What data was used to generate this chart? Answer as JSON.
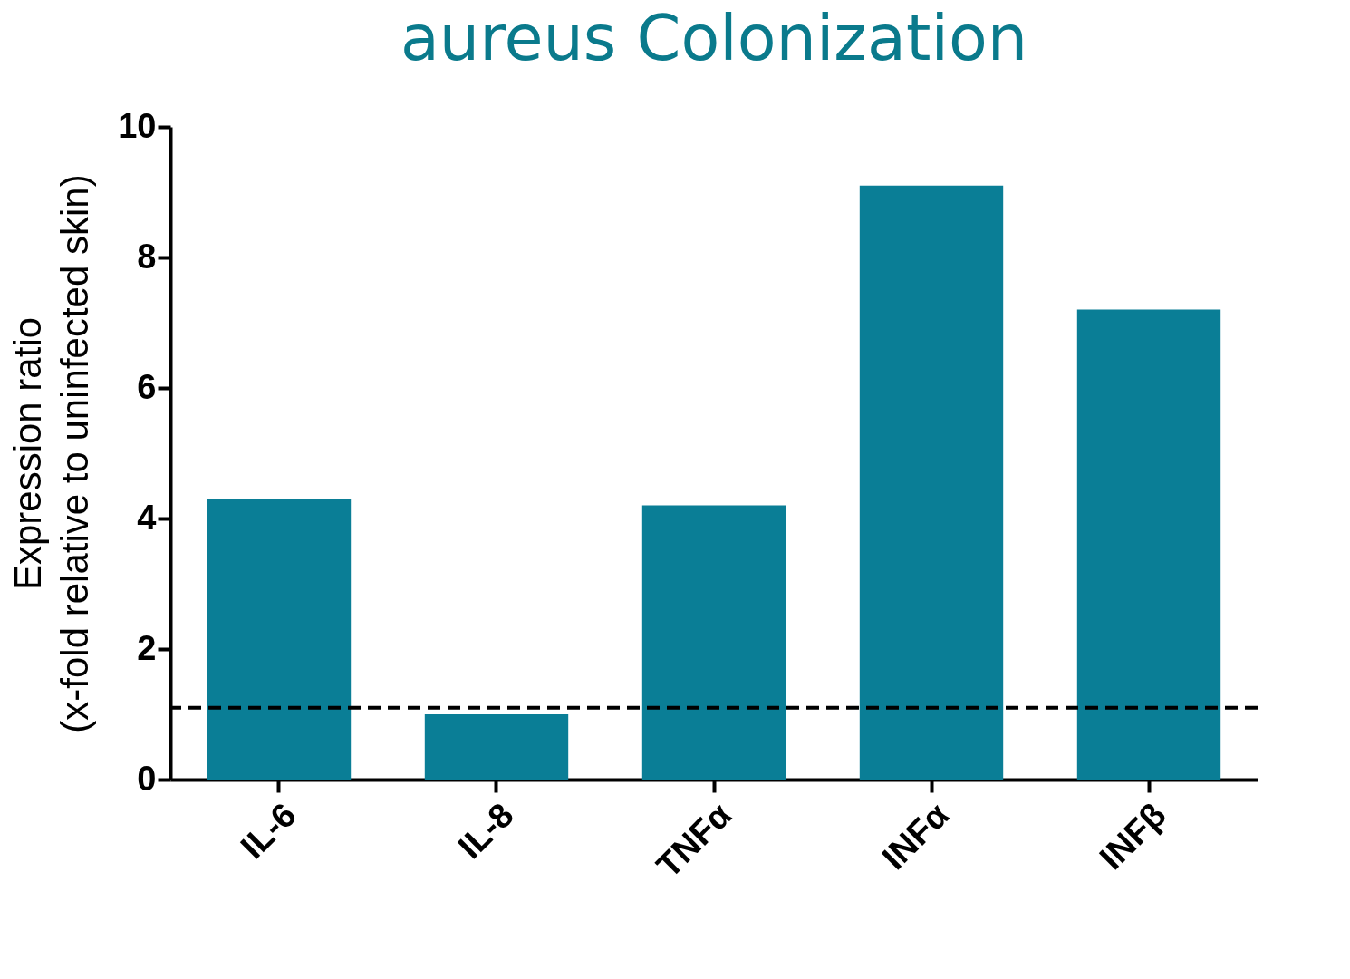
{
  "chart_data": {
    "type": "bar",
    "title": "aureus Colonization",
    "ylabel": "Expression ratio\n(x-fold relative to uninfected skin)",
    "categories": [
      "IL-6",
      "IL-8",
      "TNFα",
      "INFα",
      "INFβ"
    ],
    "values": [
      4.3,
      1.0,
      4.2,
      9.1,
      7.2
    ],
    "color": "#0a7e96",
    "ylim": [
      0,
      10
    ],
    "yticks": [
      0,
      2,
      4,
      6,
      8,
      10
    ],
    "grid": false,
    "ref_lines": [
      {
        "axis": "y",
        "value": 1.1,
        "line_style": "dashed",
        "color": "#000000"
      }
    ]
  }
}
